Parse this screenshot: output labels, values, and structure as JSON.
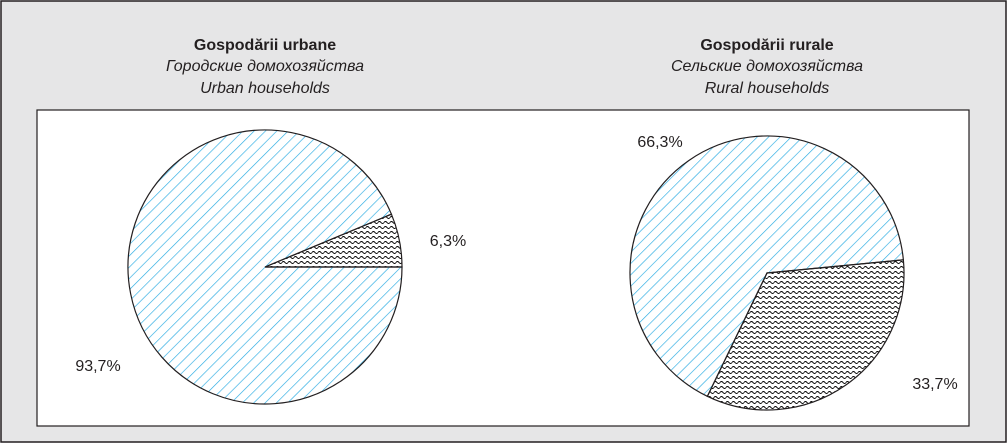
{
  "chart_data": [
    {
      "type": "pie",
      "title": "Gospodării urbane",
      "subtitles": [
        "Городские домохозяйства",
        "Urban households"
      ],
      "values": [
        6.3,
        93.7
      ],
      "value_labels": [
        "6,3%",
        "93,7%"
      ],
      "colors": [
        "#000000",
        "#29abe2"
      ]
    },
    {
      "type": "pie",
      "title": "Gospodării rurale",
      "subtitles": [
        "Сельские домохозяйства",
        "Rural households"
      ],
      "values": [
        33.7,
        66.3
      ],
      "value_labels": [
        "33,7%",
        "66,3%"
      ],
      "colors": [
        "#000000",
        "#29abe2"
      ]
    }
  ]
}
